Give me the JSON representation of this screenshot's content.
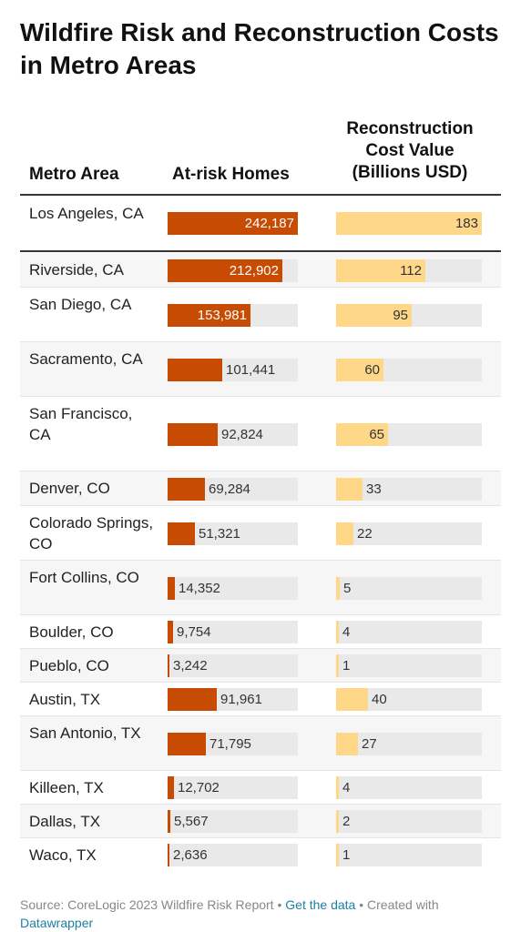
{
  "title": "Wildfire Risk and Reconstruction Costs in Metro Areas",
  "headers": {
    "metro": "Metro Area",
    "homes": "At-risk Homes",
    "cost": "Reconstruction Cost Value (Billions USD)"
  },
  "colors": {
    "homes_bar": "#c74b02",
    "cost_bar": "#fed788",
    "track": "#e9e9e9",
    "link": "#1d81a2"
  },
  "chart_data": {
    "type": "table",
    "columns": [
      "Metro Area",
      "At-risk Homes",
      "Reconstruction Cost Value (Billions USD)"
    ],
    "rows": [
      {
        "metro": "Los Angeles, CA",
        "homes": 242187,
        "homes_label": "242,187",
        "cost": 183,
        "cost_label": "183"
      },
      {
        "metro": "Riverside, CA",
        "homes": 212902,
        "homes_label": "212,902",
        "cost": 112,
        "cost_label": "112"
      },
      {
        "metro": "San Diego, CA",
        "homes": 153981,
        "homes_label": "153,981",
        "cost": 95,
        "cost_label": "95"
      },
      {
        "metro": "Sacramento, CA",
        "homes": 101441,
        "homes_label": "101,441",
        "cost": 60,
        "cost_label": "60"
      },
      {
        "metro": "San Francisco, CA",
        "homes": 92824,
        "homes_label": "92,824",
        "cost": 65,
        "cost_label": "65"
      },
      {
        "metro": "Denver, CO",
        "homes": 69284,
        "homes_label": "69,284",
        "cost": 33,
        "cost_label": "33"
      },
      {
        "metro": "Colorado Springs, CO",
        "homes": 51321,
        "homes_label": "51,321",
        "cost": 22,
        "cost_label": "22"
      },
      {
        "metro": "Fort Collins, CO",
        "homes": 14352,
        "homes_label": "14,352",
        "cost": 5,
        "cost_label": "5"
      },
      {
        "metro": "Boulder, CO",
        "homes": 9754,
        "homes_label": "9,754",
        "cost": 4,
        "cost_label": "4"
      },
      {
        "metro": "Pueblo, CO",
        "homes": 3242,
        "homes_label": "3,242",
        "cost": 1,
        "cost_label": "1"
      },
      {
        "metro": "Austin, TX",
        "homes": 91961,
        "homes_label": "91,961",
        "cost": 40,
        "cost_label": "40"
      },
      {
        "metro": "San Antonio, TX",
        "homes": 71795,
        "homes_label": "71,795",
        "cost": 27,
        "cost_label": "27"
      },
      {
        "metro": "Killeen, TX",
        "homes": 12702,
        "homes_label": "12,702",
        "cost": 4,
        "cost_label": "4"
      },
      {
        "metro": "Dallas, TX",
        "homes": 5567,
        "homes_label": "5,567",
        "cost": 2,
        "cost_label": "2"
      },
      {
        "metro": "Waco, TX",
        "homes": 2636,
        "homes_label": "2,636",
        "cost": 1,
        "cost_label": "1"
      }
    ]
  },
  "footer": {
    "source": "Source: CoreLogic 2023 Wildfire Risk Report",
    "sep1": " • ",
    "get_data": "Get the data",
    "sep2": " • Created with ",
    "datawrapper": "Datawrapper"
  }
}
